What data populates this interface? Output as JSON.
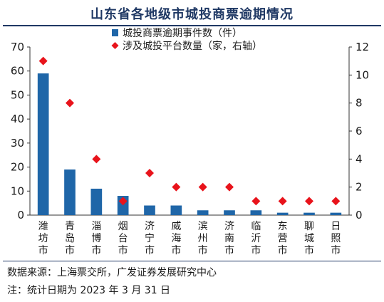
{
  "title": "山东省各地级市城投商票逾期情况",
  "source": "数据来源：上海票交所，广发证券发展研究中心",
  "note": "注：统计日期为 2023 年 3 月 31 日",
  "colors": {
    "bar": "#1f66a8",
    "marker": "#e8131b",
    "title": "#1f3864"
  },
  "chart_data": {
    "type": "bar",
    "categories": [
      "潍坊市",
      "青岛市",
      "淄博市",
      "烟台市",
      "济宁市",
      "威海市",
      "滨州市",
      "济南市",
      "临沂市",
      "东营市",
      "聊城市",
      "日照市"
    ],
    "series": [
      {
        "name": "城投商票逾期事件数（件）",
        "type": "bar",
        "axis": "left",
        "values": [
          59,
          19,
          11,
          8,
          4,
          4,
          2,
          2,
          2,
          1,
          1,
          1
        ]
      },
      {
        "name": "涉及城投平台数量（家，右轴）",
        "type": "scatter",
        "marker": "diamond",
        "axis": "right",
        "values": [
          11,
          8,
          4,
          1,
          3,
          2,
          2,
          2,
          1,
          1,
          1,
          1
        ]
      }
    ],
    "ylim": [
      0,
      70
    ],
    "yticks": [
      "0",
      "10",
      "20",
      "30",
      "40",
      "50",
      "60",
      "70"
    ],
    "y2lim": [
      0,
      12
    ],
    "y2ticks": [
      "0",
      "2",
      "4",
      "6",
      "8",
      "10",
      "12"
    ],
    "grid": false,
    "legend": "top-right"
  }
}
